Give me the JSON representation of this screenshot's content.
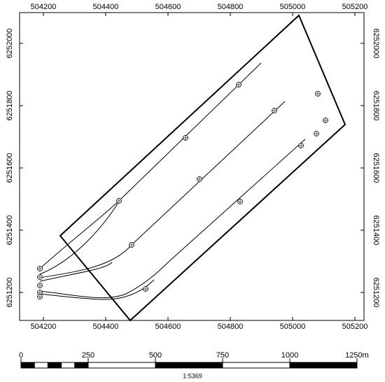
{
  "map": {
    "x_ticks": [
      504200,
      504400,
      504600,
      504800,
      505000,
      505200
    ],
    "y_ticks": [
      6252000,
      6251800,
      6251600,
      6251400,
      6251200
    ]
  },
  "scale_bar": {
    "ticks": [
      0,
      250,
      500,
      750,
      1000,
      {
        "value": 1250,
        "label": "1250m"
      }
    ],
    "ratio": "1:5369"
  }
}
